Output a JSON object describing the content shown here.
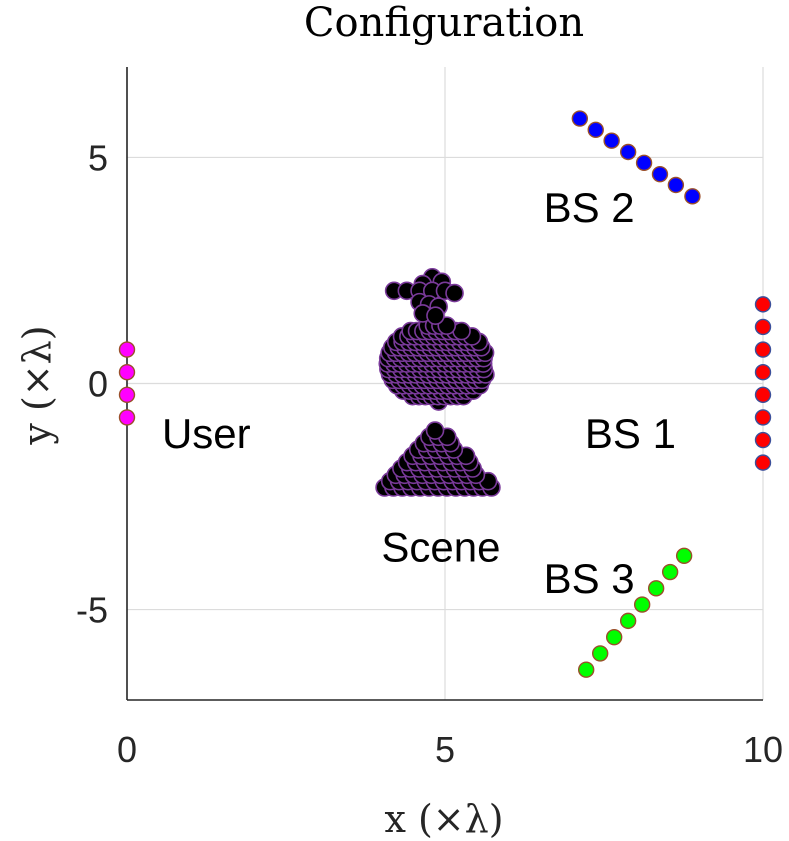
{
  "chart_data": {
    "type": "scatter",
    "title": "Configuration",
    "xlabel": "x (×λ)",
    "ylabel": "y (×λ)",
    "xlim": [
      0,
      10
    ],
    "ylim": [
      -7,
      7
    ],
    "xticks": [
      0,
      5,
      10
    ],
    "yticks": [
      -5,
      0,
      5
    ],
    "xtick_labels": [
      "0",
      "5",
      "10"
    ],
    "ytick_labels": [
      "-5",
      "0",
      "5"
    ],
    "grid": true,
    "series": [
      {
        "color": "#ff00ff",
        "edge": "#9a4f2a",
        "points": [
          [
            0,
            0.75
          ],
          [
            0,
            0.25
          ],
          [
            0,
            -0.25
          ],
          [
            0,
            -0.75
          ]
        ]
      },
      {
        "color": "#ff0000",
        "edge": "#3b4f9a",
        "points": [
          [
            10,
            1.75
          ],
          [
            10,
            1.25
          ],
          [
            10,
            0.75
          ],
          [
            10,
            0.25
          ],
          [
            10,
            -0.25
          ],
          [
            10,
            -0.75
          ],
          [
            10,
            -1.25
          ],
          [
            10,
            -1.75
          ]
        ]
      },
      {
        "color": "#0000ff",
        "edge": "#9a4f2a",
        "points": [
          [
            7.12,
            5.86
          ],
          [
            7.37,
            5.61
          ],
          [
            7.62,
            5.37
          ],
          [
            7.88,
            5.12
          ],
          [
            8.13,
            4.88
          ],
          [
            8.38,
            4.63
          ],
          [
            8.63,
            4.39
          ],
          [
            8.89,
            4.14
          ]
        ]
      },
      {
        "color": "#00ff00",
        "edge": "#9a4f2a",
        "points": [
          [
            7.22,
            -6.33
          ],
          [
            7.44,
            -5.97
          ],
          [
            7.66,
            -5.61
          ],
          [
            7.88,
            -5.25
          ],
          [
            8.1,
            -4.89
          ],
          [
            8.32,
            -4.53
          ],
          [
            8.54,
            -4.17
          ],
          [
            8.76,
            -3.81
          ]
        ]
      }
    ],
    "scene": {
      "color": "#000000",
      "edge": "#7a3a9a",
      "head": [
        [
          4.8,
          2.35
        ],
        [
          4.65,
          2.2
        ],
        [
          4.95,
          2.25
        ],
        [
          4.2,
          2.05
        ],
        [
          4.4,
          2.05
        ],
        [
          4.6,
          2.05
        ],
        [
          4.8,
          2.05
        ],
        [
          5.0,
          2.05
        ],
        [
          5.15,
          2.0
        ],
        [
          4.6,
          1.8
        ],
        [
          4.75,
          1.75
        ],
        [
          4.9,
          1.7
        ],
        [
          4.65,
          1.55
        ],
        [
          4.85,
          1.5
        ]
      ],
      "body": {
        "cx": 4.9,
        "cy": 0.45,
        "rx": 0.8,
        "ry": 0.85,
        "step_x": 0.1,
        "step_y": 0.12
      },
      "cone": {
        "apex": [
          4.9,
          -0.95
        ],
        "base_y": -2.3,
        "base_left": 4.05,
        "base_right": 5.8,
        "step": 0.14
      }
    },
    "annotations": [
      {
        "text": "User",
        "x": 0.55,
        "y": -1.1
      },
      {
        "text": "BS 1",
        "x": 7.2,
        "y": -1.1
      },
      {
        "text": "BS 2",
        "x": 6.55,
        "y": 3.9
      },
      {
        "text": "BS 3",
        "x": 6.55,
        "y": -4.3
      },
      {
        "text": "Scene",
        "x": 4.0,
        "y": -3.6
      }
    ]
  }
}
